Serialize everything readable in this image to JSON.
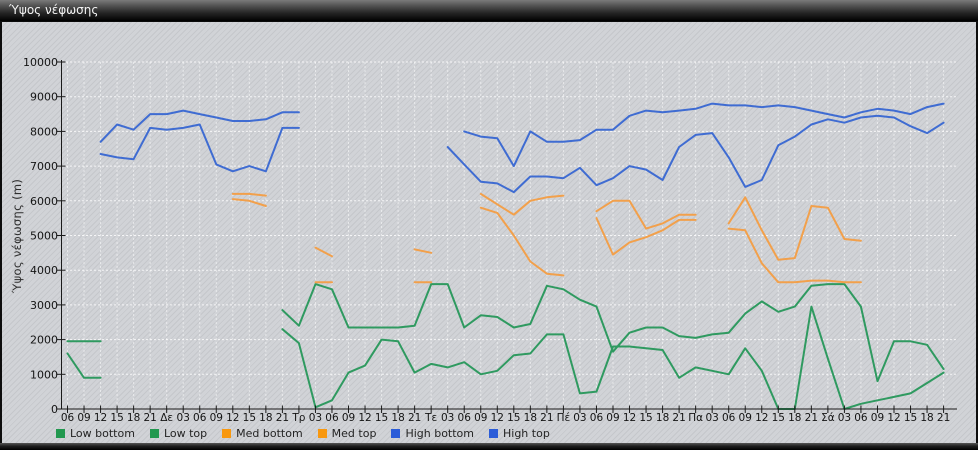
{
  "window": {
    "title": "Ύψος νέφωσης"
  },
  "chart": {
    "y_axis": {
      "title": "Ύψος νέφωσης (m)",
      "ticks": [
        0,
        1000,
        2000,
        3000,
        4000,
        5000,
        6000,
        7000,
        8000,
        9000,
        10000
      ]
    },
    "legend": [
      {
        "label": "Low bottom",
        "swatch": "#22984f"
      },
      {
        "label": "Low top",
        "swatch": "#22984f"
      },
      {
        "label": "Med bottom",
        "swatch": "#f8980f"
      },
      {
        "label": "Med top",
        "swatch": "#f8980f"
      },
      {
        "label": "High bottom",
        "swatch": "#2b5cd8"
      },
      {
        "label": "High top",
        "swatch": "#2b5cd8"
      }
    ]
  },
  "chart_data": {
    "type": "line",
    "title": "Ύψος νέφωσης",
    "xlabel": "",
    "ylabel": "Ύψος νέφωσης (m)",
    "ylim": [
      0,
      10000
    ],
    "grid": true,
    "legend_position": "bottom",
    "x_note": "3-hourly steps; day labels mark 00:00 (Greek weekday abbreviations)",
    "x": [
      "06",
      "09",
      "12",
      "15",
      "18",
      "21",
      "Δε",
      "03",
      "06",
      "09",
      "12",
      "15",
      "18",
      "21",
      "Τρ",
      "03",
      "06",
      "09",
      "12",
      "15",
      "18",
      "21",
      "Τε",
      "03",
      "06",
      "09",
      "12",
      "15",
      "18",
      "21",
      "Πέ",
      "03",
      "06",
      "09",
      "12",
      "15",
      "18",
      "21",
      "Πα",
      "03",
      "06",
      "09",
      "12",
      "15",
      "18",
      "21",
      "Σά",
      "03",
      "06",
      "09",
      "12",
      "15",
      "18",
      "21"
    ],
    "series": [
      {
        "name": "Low bottom",
        "color": "#2f9a60",
        "values": [
          1600,
          900,
          900,
          null,
          null,
          null,
          null,
          null,
          null,
          null,
          null,
          null,
          null,
          2300,
          1900,
          50,
          250,
          1050,
          1250,
          2000,
          1950,
          1050,
          1300,
          1200,
          1350,
          1000,
          1100,
          1550,
          1600,
          2150,
          2150,
          450,
          500,
          1800,
          1800,
          1750,
          1700,
          900,
          1200,
          1100,
          1000,
          1750,
          1100,
          0,
          0,
          2950,
          1450,
          0,
          150,
          250,
          350,
          450,
          750,
          1050
        ]
      },
      {
        "name": "Low top",
        "color": "#2f9a60",
        "values": [
          1950,
          1950,
          1950,
          null,
          null,
          null,
          null,
          null,
          null,
          null,
          null,
          null,
          null,
          2850,
          2400,
          3600,
          3450,
          2350,
          2350,
          2350,
          2350,
          2400,
          3600,
          3600,
          2350,
          2700,
          2650,
          2350,
          2450,
          3550,
          3450,
          3150,
          2950,
          1650,
          2200,
          2350,
          2350,
          2100,
          2050,
          2150,
          2200,
          2750,
          3100,
          2800,
          2950,
          3550,
          3600,
          3600,
          2950,
          800,
          1950,
          1950,
          1850,
          1150
        ]
      },
      {
        "name": "Med bottom",
        "color": "#f2a04b",
        "values": [
          null,
          null,
          null,
          null,
          null,
          null,
          null,
          null,
          null,
          null,
          6050,
          6000,
          5850,
          null,
          null,
          3650,
          3650,
          null,
          null,
          null,
          null,
          3650,
          3650,
          null,
          null,
          5800,
          5650,
          5000,
          4250,
          3900,
          3850,
          null,
          5500,
          4450,
          4800,
          4950,
          5150,
          5450,
          5450,
          null,
          5200,
          5150,
          4200,
          3650,
          3650,
          3700,
          3700,
          3650,
          3650,
          null,
          null,
          null,
          null,
          null
        ]
      },
      {
        "name": "Med top",
        "color": "#f2a04b",
        "values": [
          null,
          null,
          null,
          null,
          null,
          null,
          null,
          null,
          null,
          null,
          6200,
          6200,
          6150,
          null,
          null,
          4650,
          4400,
          null,
          null,
          null,
          null,
          4600,
          4500,
          null,
          null,
          6200,
          5900,
          5600,
          6000,
          6100,
          6150,
          null,
          5700,
          6000,
          6000,
          5200,
          5350,
          5600,
          5600,
          null,
          5350,
          6100,
          5150,
          4300,
          4350,
          5850,
          5800,
          4900,
          4850,
          null,
          null,
          null,
          null,
          null
        ]
      },
      {
        "name": "High bottom",
        "color": "#3f6cd2",
        "values": [
          null,
          null,
          7350,
          7250,
          7200,
          8100,
          8050,
          8100,
          8200,
          7050,
          6850,
          7000,
          6850,
          8100,
          8100,
          null,
          null,
          null,
          null,
          null,
          null,
          null,
          null,
          7550,
          7050,
          6550,
          6500,
          6250,
          6700,
          6700,
          6650,
          6950,
          6450,
          6650,
          7000,
          6900,
          6600,
          7550,
          7900,
          7950,
          7250,
          6400,
          6600,
          7600,
          7850,
          8200,
          8350,
          8250,
          8400,
          8450,
          8400,
          8150,
          7950,
          8250
        ]
      },
      {
        "name": "High top",
        "color": "#3f6cd2",
        "values": [
          null,
          null,
          7700,
          8200,
          8050,
          8500,
          8500,
          8600,
          8500,
          8400,
          8300,
          8300,
          8350,
          8550,
          8550,
          null,
          null,
          null,
          null,
          null,
          null,
          null,
          null,
          null,
          8000,
          7850,
          7800,
          7000,
          8000,
          7700,
          7700,
          7750,
          8050,
          8050,
          8450,
          8600,
          8550,
          8600,
          8650,
          8800,
          8750,
          8750,
          8700,
          8750,
          8700,
          8600,
          8500,
          8400,
          8550,
          8650,
          8600,
          8500,
          8700,
          8800
        ]
      }
    ]
  }
}
